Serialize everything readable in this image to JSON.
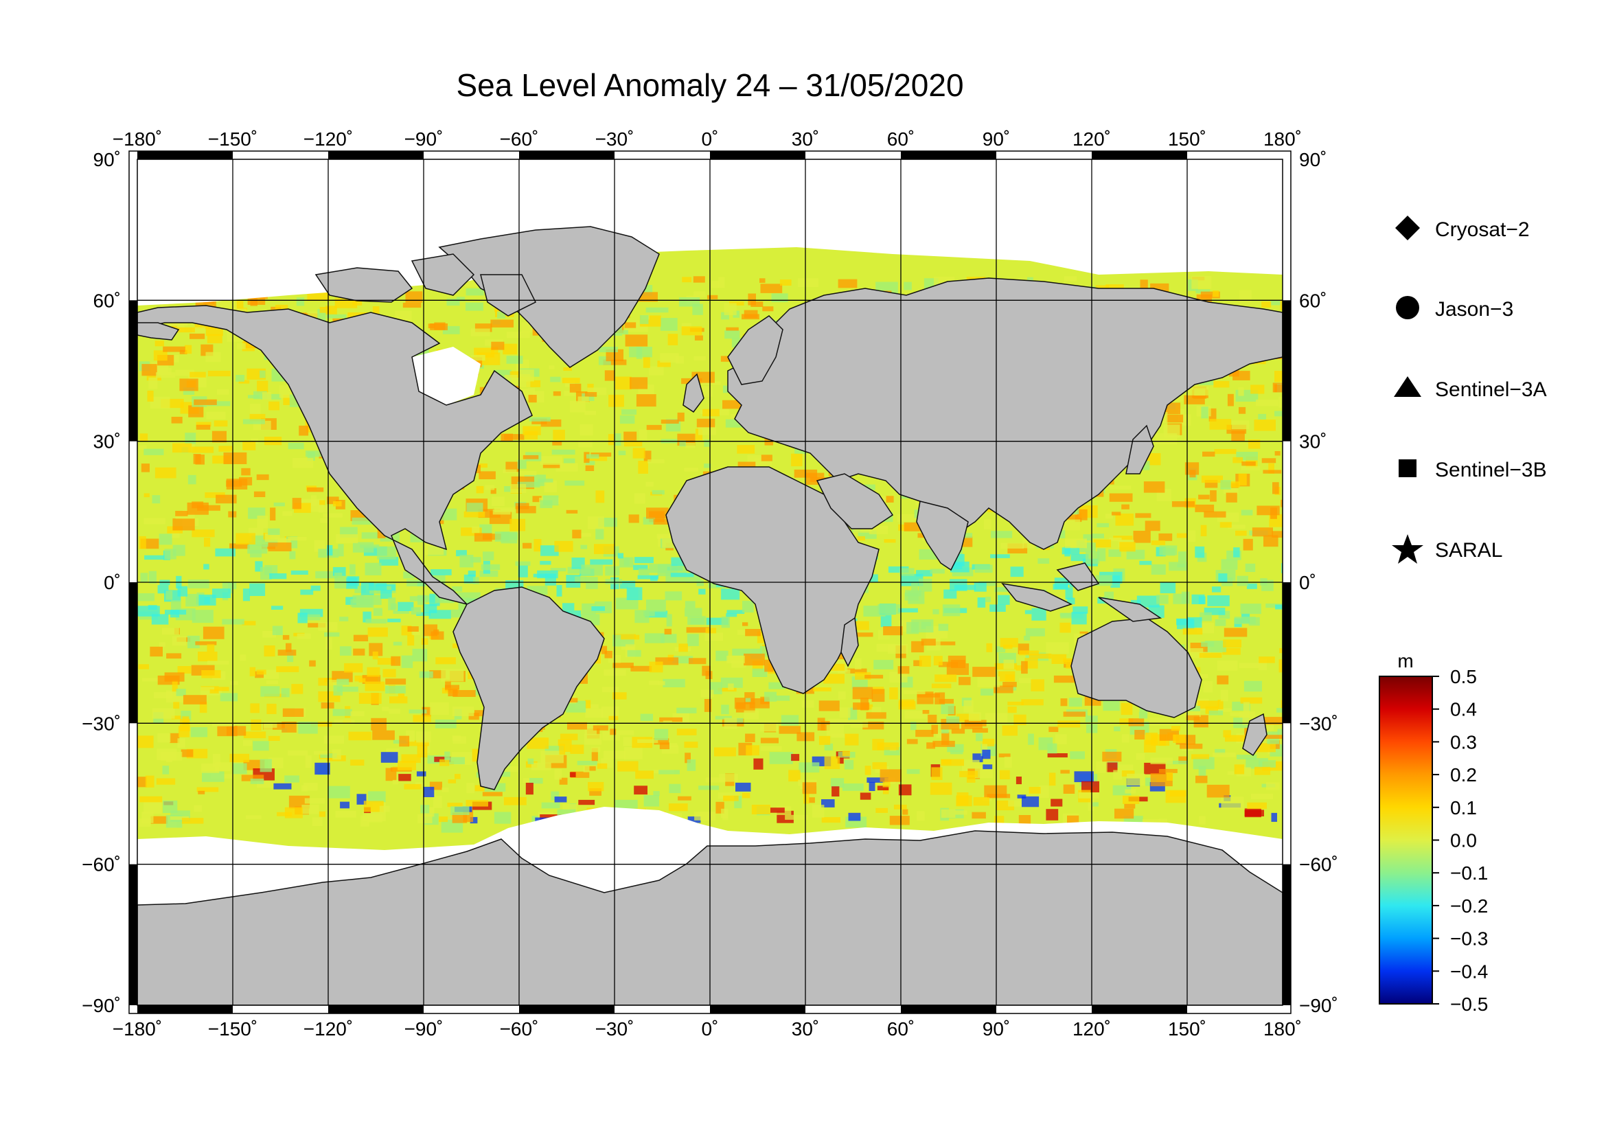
{
  "title": "Sea Level Anomaly 24 – 31/05/2020",
  "map": {
    "projection": "Plate Carree",
    "lon_range": [
      -180,
      180
    ],
    "lat_range": [
      -90,
      90
    ],
    "lon_ticks": [
      "−180˚",
      "−150˚",
      "−120˚",
      "−90˚",
      "−60˚",
      "−30˚",
      "0˚",
      "30˚",
      "60˚",
      "90˚",
      "120˚",
      "150˚",
      "180˚"
    ],
    "lat_ticks": [
      "90˚",
      "60˚",
      "30˚",
      "0˚",
      "−30˚",
      "−60˚",
      "−90˚"
    ],
    "grid": true,
    "land_color": "#bdbdbd",
    "ice_color": "#ffffff",
    "ocean_base_color": "#d8ef3a"
  },
  "legend": {
    "placement": "right",
    "items": [
      {
        "label": "Cryosat−2",
        "icon": "diamond-icon"
      },
      {
        "label": "Jason−3",
        "icon": "circle-icon"
      },
      {
        "label": "Sentinel−3A",
        "icon": "triangle-icon"
      },
      {
        "label": "Sentinel−3B",
        "icon": "square-icon"
      },
      {
        "label": "SARAL",
        "icon": "star-icon"
      }
    ]
  },
  "colorbar": {
    "unit": "m",
    "min": -0.5,
    "max": 0.5,
    "tick_labels": [
      "0.5",
      "0.4",
      "0.3",
      "0.2",
      "0.1",
      "0.0",
      "−0.1",
      "−0.2",
      "−0.3",
      "−0.4",
      "−0.5"
    ],
    "colors": [
      "#7a0000",
      "#d40000",
      "#ff4a00",
      "#ff9a00",
      "#ffd800",
      "#e0f040",
      "#9cf07a",
      "#3af0e0",
      "#00a8ff",
      "#0030ff",
      "#00007a"
    ]
  }
}
